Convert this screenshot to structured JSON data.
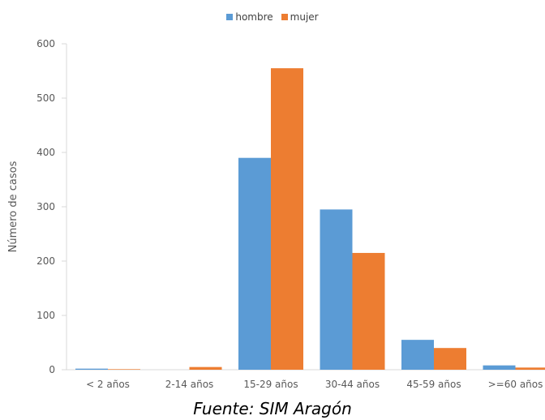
{
  "chart_data": {
    "type": "bar",
    "categories": [
      "< 2 años",
      "2-14 años",
      "15-29 años",
      "30-44 años",
      "45-59 años",
      ">=60 años"
    ],
    "series": [
      {
        "name": "hombre",
        "values": [
          2,
          0,
          390,
          295,
          55,
          8
        ],
        "color": "#5B9BD5"
      },
      {
        "name": "mujer",
        "values": [
          1,
          5,
          555,
          215,
          40,
          4
        ],
        "color": "#ED7D31"
      }
    ],
    "title": "",
    "xlabel": "",
    "ylabel": "Número de casos",
    "ylim": [
      0,
      600
    ],
    "yticks": [
      0,
      100,
      200,
      300,
      400,
      500,
      600
    ],
    "grid": false,
    "legend_position": "top"
  },
  "source_note": "Fuente: SIM Aragón"
}
